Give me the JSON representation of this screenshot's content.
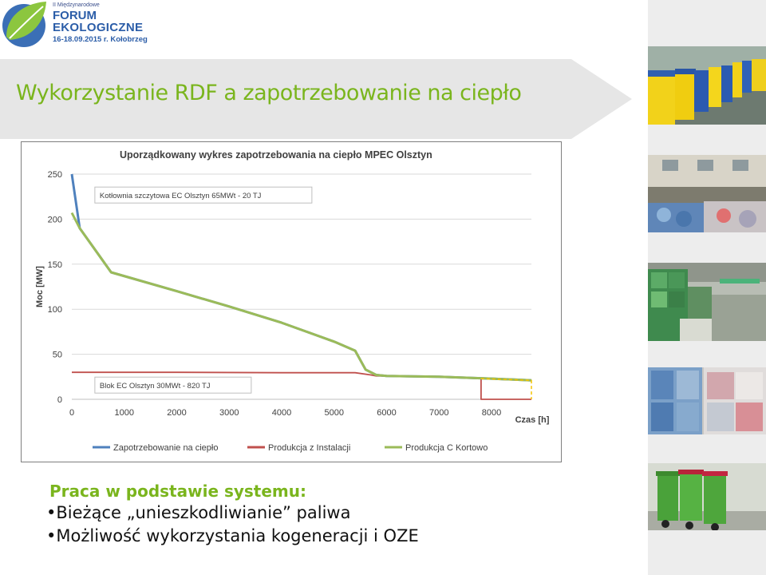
{
  "logo": {
    "edition": "II Międzynarodowe",
    "line1": "FORUM",
    "line2": "EKOLOGICZNE",
    "dates": "16-18.09.2015 r. Kołobrzeg"
  },
  "slide": {
    "title": "Wykorzystanie RDF a zapotrzebowanie na ciepło",
    "subheading": "Praca w podstawie systemu:",
    "bullets": [
      "•Bieżące „unieszkodliwianie” paliwa",
      "•Możliwość wykorzystania kogeneracji i OZE"
    ]
  },
  "colors": {
    "accent_green": "#7ab51d",
    "series_blue": "#4f81bd",
    "series_red": "#c0504d",
    "series_green": "#9bbb59",
    "marker_yellow": "#f5c400"
  },
  "chart_data": {
    "type": "line",
    "title": "Uporządkowany wykres zapotrzebowania na ciepło MPEC Olsztyn",
    "xlabel": "Czas [h]",
    "ylabel": "Moc [MW]",
    "xlim": [
      0,
      8760
    ],
    "ylim": [
      0,
      250
    ],
    "xticks": [
      0,
      1000,
      2000,
      3000,
      4000,
      5000,
      6000,
      7000,
      8000
    ],
    "yticks": [
      0,
      50,
      100,
      150,
      200,
      250
    ],
    "grid": "horizontal",
    "legend_position": "bottom",
    "annotations": [
      {
        "text": "Kotłownia szczytowa EC Olsztyn 65MWt - 20 TJ",
        "x": 500,
        "y": 225
      },
      {
        "text": "Blok EC Olsztyn 30MWt - 820 TJ",
        "x": 500,
        "y": 14
      }
    ],
    "series": [
      {
        "name": "Zapotrzebowanie na ciepło",
        "color": "#4f81bd",
        "x": [
          0,
          150,
          750,
          2000,
          3000,
          4000,
          5000,
          5400,
          5600,
          5800,
          6000,
          7000,
          8000,
          8760
        ],
        "y": [
          250,
          190,
          141,
          120,
          103,
          85,
          64,
          54,
          33,
          27,
          26,
          25,
          23,
          21
        ]
      },
      {
        "name": "Produkcja z Instalacji",
        "color": "#c0504d",
        "x": [
          0,
          2000,
          4000,
          5400,
          5700,
          5800,
          7000,
          7800,
          7800,
          8760
        ],
        "y": [
          30,
          30,
          29.5,
          29.5,
          27,
          26,
          25,
          23,
          0,
          0
        ]
      },
      {
        "name": "Produkcja C Kortowo",
        "color": "#9bbb59",
        "x": [
          0,
          150,
          750,
          2000,
          3000,
          4000,
          5000,
          5400,
          5600,
          5800,
          6000,
          7000,
          8000,
          8760
        ],
        "y": [
          207,
          190,
          141,
          120,
          103,
          85,
          64,
          54,
          33,
          27,
          26,
          25,
          23,
          21
        ]
      }
    ]
  }
}
